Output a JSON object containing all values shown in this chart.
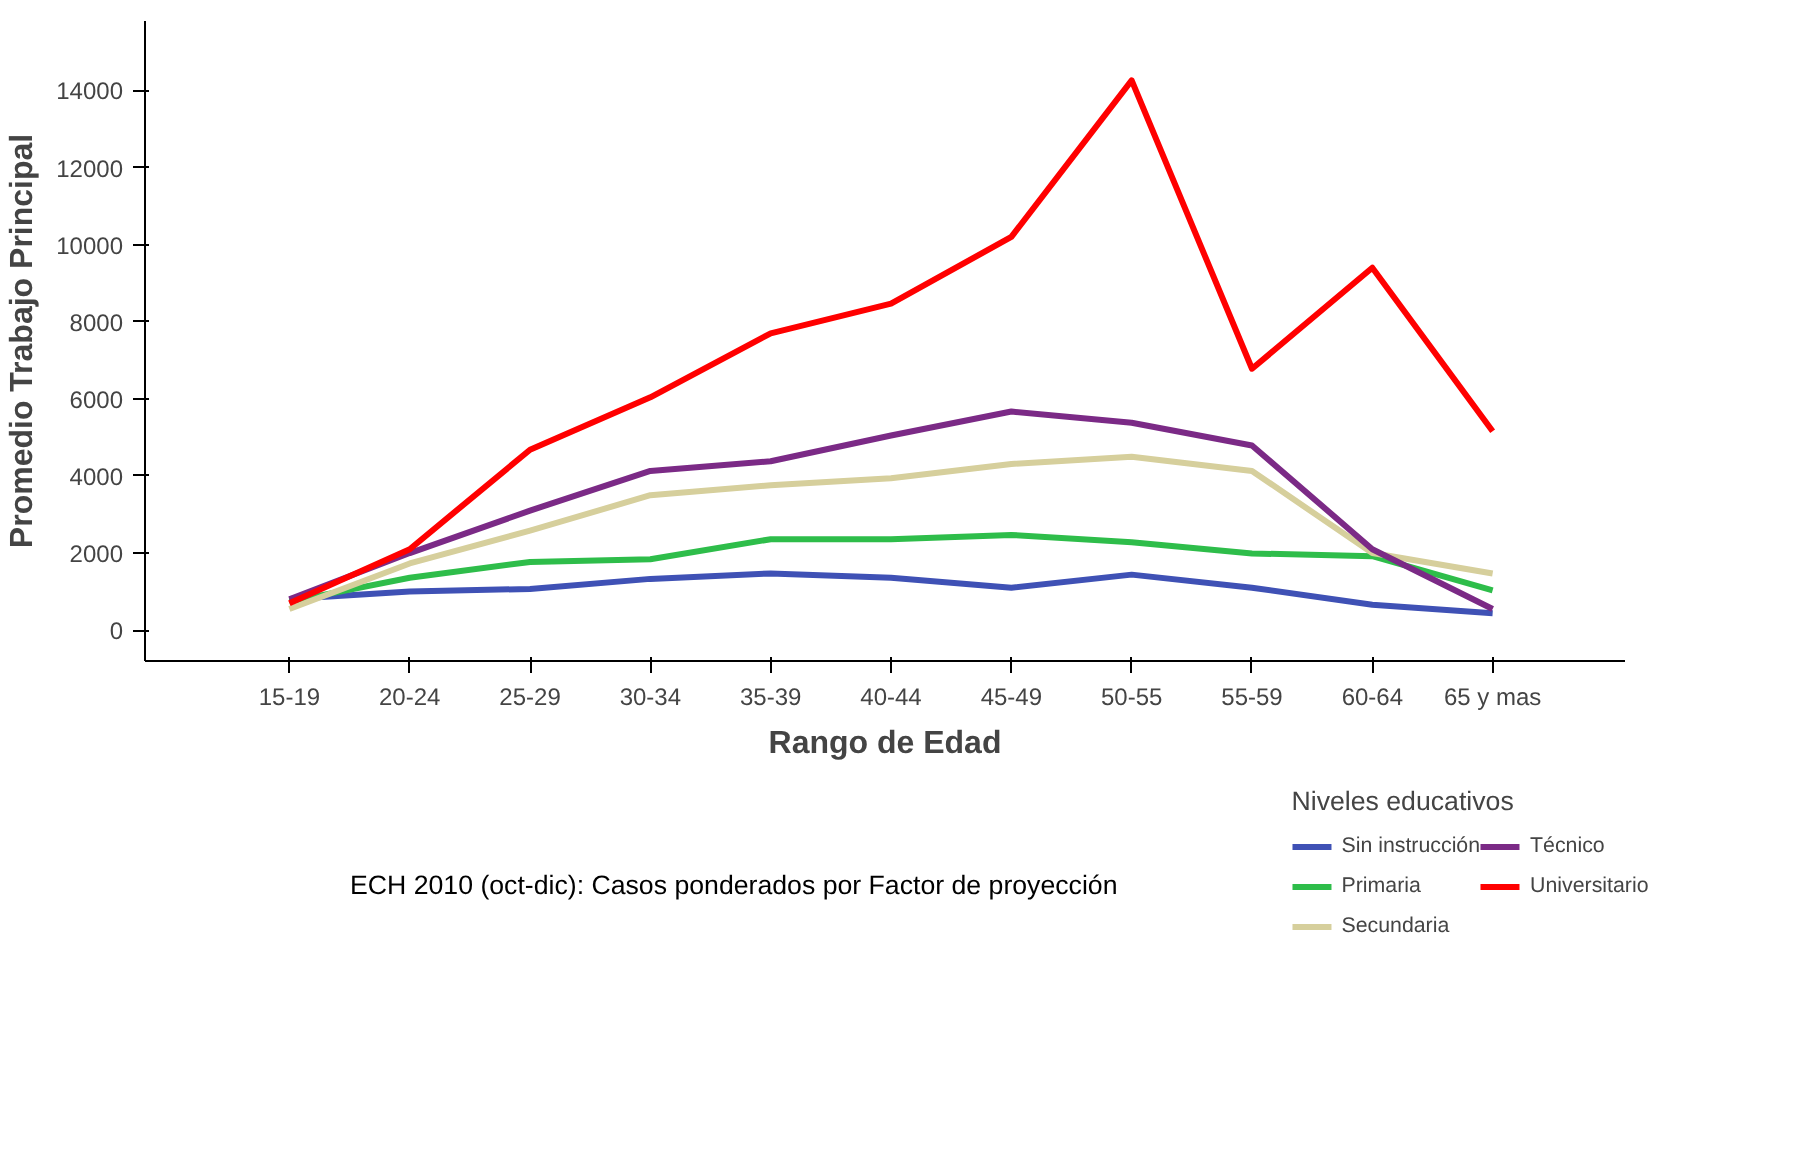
{
  "chart_data": {
    "type": "line",
    "xlabel": "Rango de Edad",
    "ylabel": "Promedio Trabajo Principal",
    "legend_title": "Niveles educativos",
    "categories": [
      "15-19",
      "20-24",
      "25-29",
      "30-34",
      "35-39",
      "40-44",
      "45-49",
      "50-55",
      "55-59",
      "60-64",
      "65 y mas"
    ],
    "series": [
      {
        "name": "Sin instrucción",
        "color": "#3f51b5",
        "values": [
          810,
          1000,
          1070,
          1330,
          1470,
          1360,
          1100,
          1440,
          1100,
          660,
          440
        ]
      },
      {
        "name": "Primaria",
        "color": "#2ebd4a",
        "values": [
          740,
          1360,
          1770,
          1840,
          2360,
          2360,
          2470,
          2280,
          1990,
          1920,
          1030
        ]
      },
      {
        "name": "Secundaria",
        "color": "#d6cf9c",
        "values": [
          550,
          1730,
          2580,
          3500,
          3760,
          3940,
          4310,
          4500,
          4130,
          2000,
          1470
        ]
      },
      {
        "name": "Técnico",
        "color": "#7b2a86",
        "values": [
          800,
          2000,
          3100,
          4130,
          4380,
          5050,
          5670,
          5380,
          4790,
          2100,
          550
        ]
      },
      {
        "name": "Universitario",
        "color": "#ff0000",
        "values": [
          700,
          2100,
          4680,
          6040,
          7700,
          8470,
          10200,
          14260,
          6780,
          9400,
          5160
        ]
      }
    ],
    "ylim": [
      -800,
      15800
    ],
    "yticks": [
      0,
      2000,
      4000,
      6000,
      8000,
      10000,
      12000,
      14000
    ],
    "grid": false,
    "legend": "bottom right",
    "marker": "none",
    "line_style": "solid",
    "annotations": [
      "ECH 2010 (oct-dic): Casos ponderados por Factor de proyección"
    ]
  }
}
